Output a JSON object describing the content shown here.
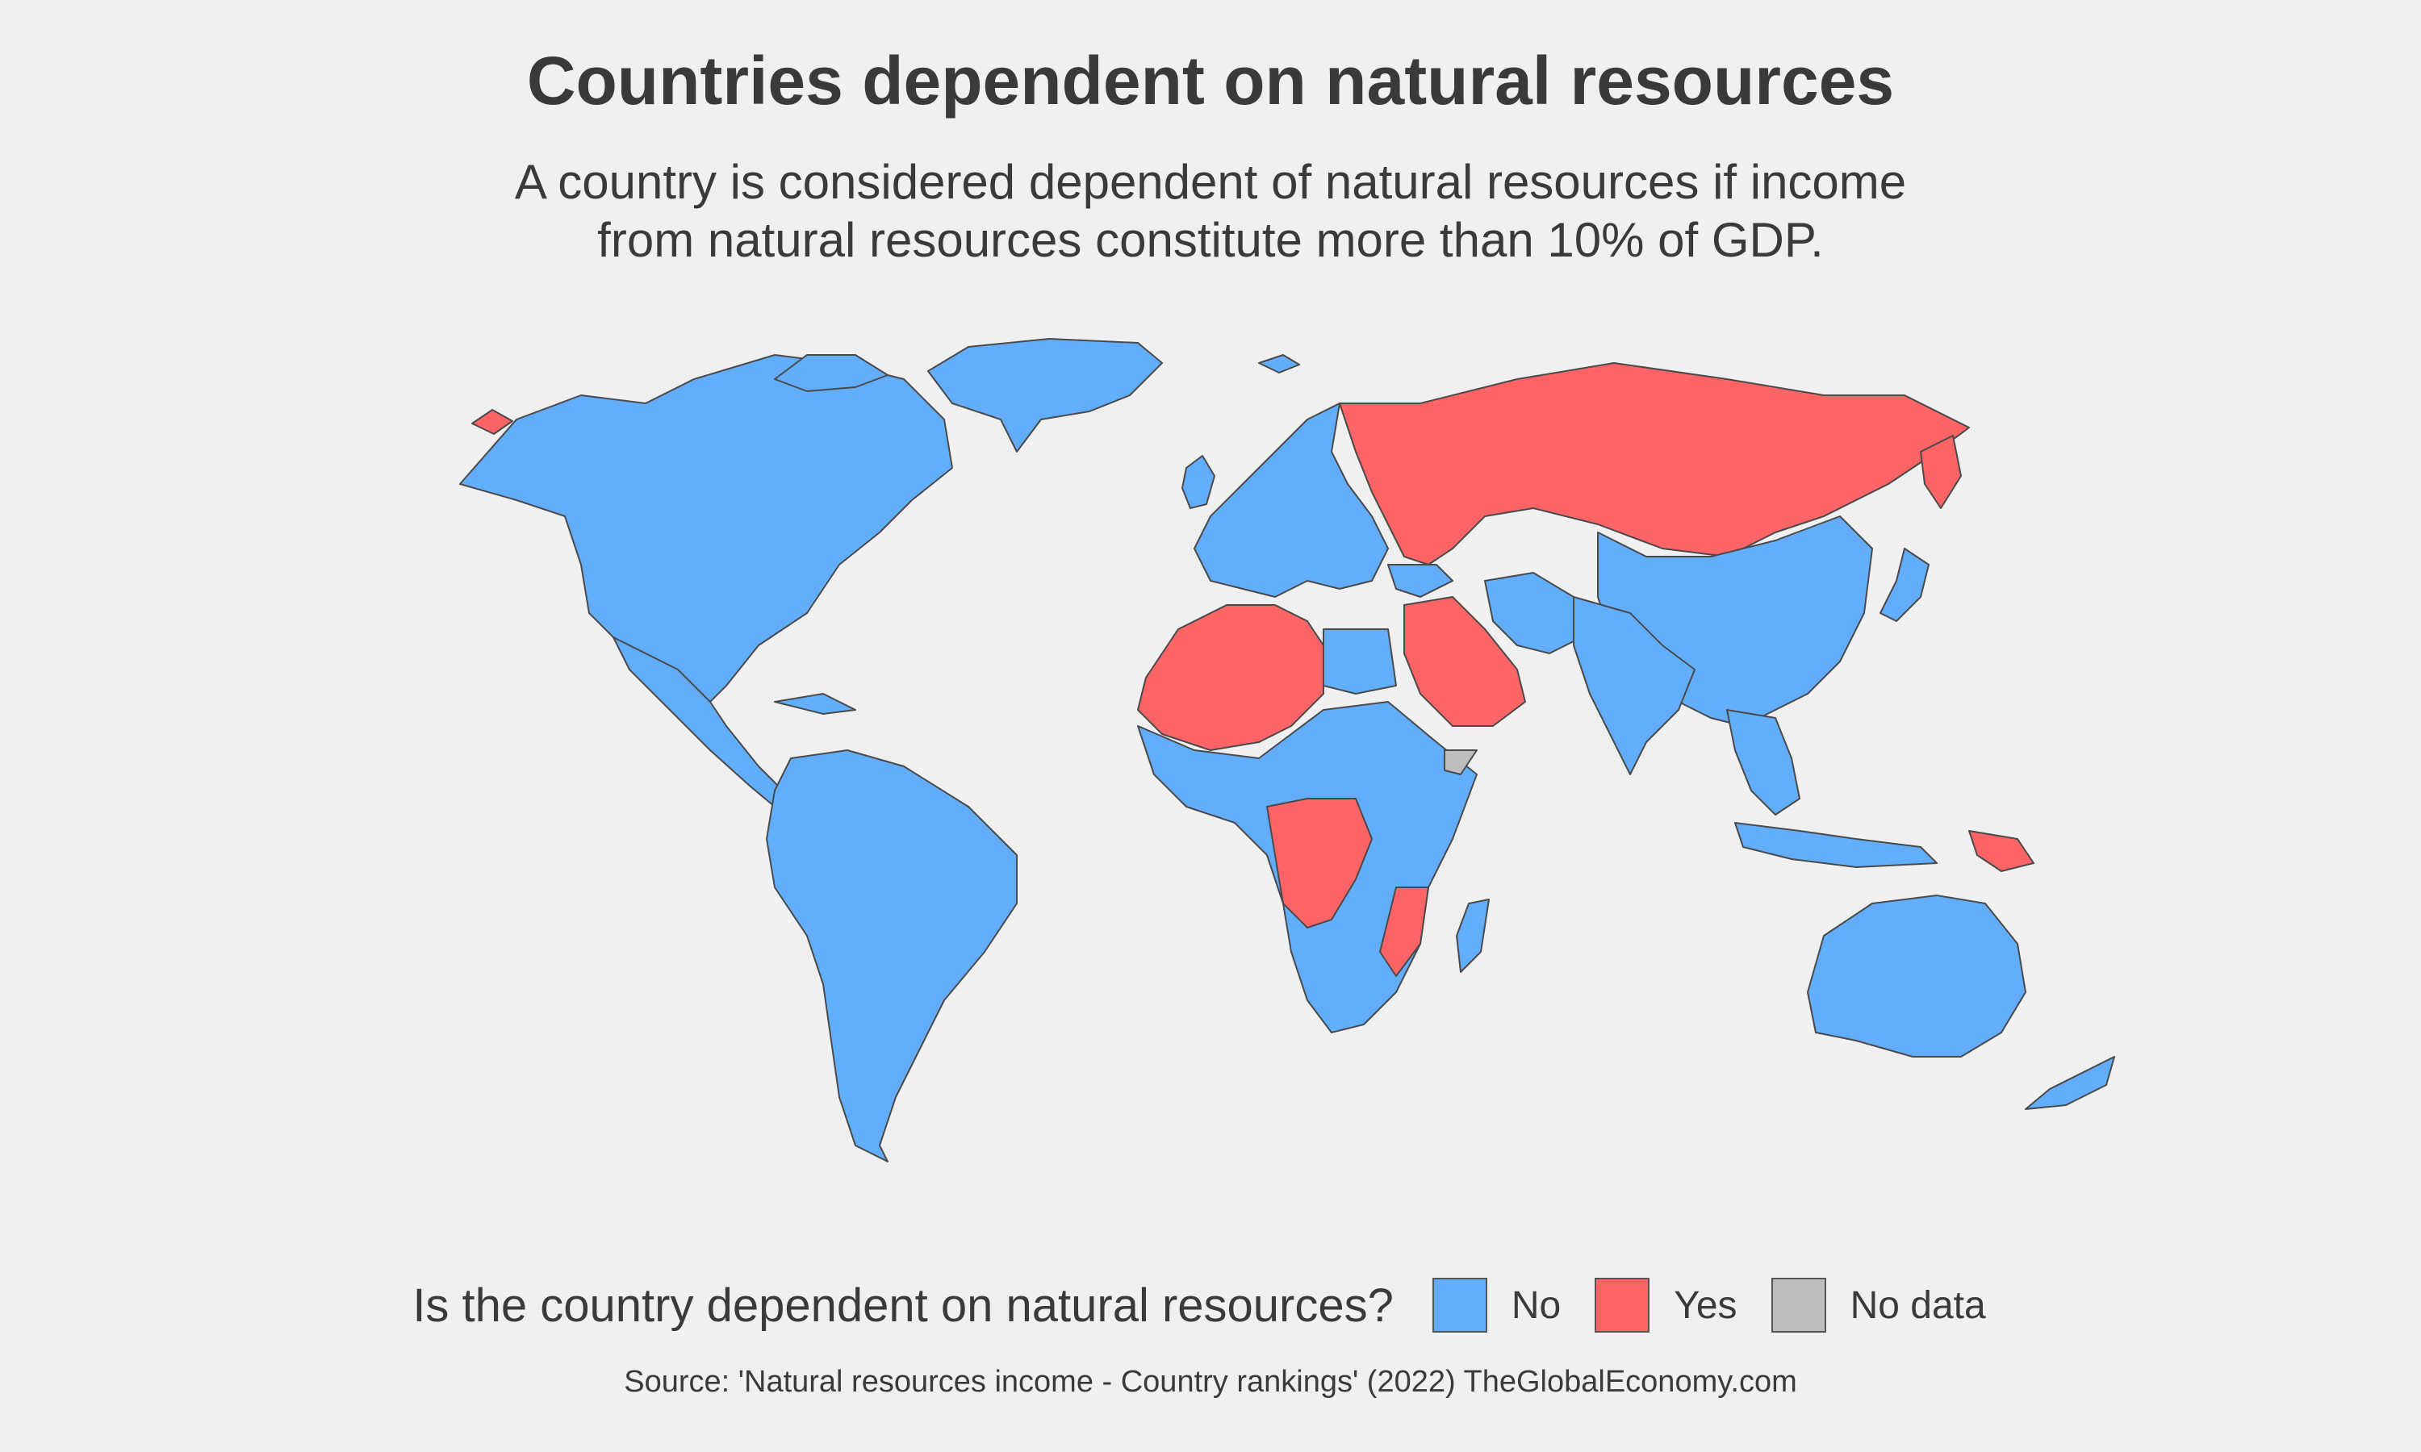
{
  "title": "Countries dependent on natural resources",
  "subtitle": [
    "A country is considered dependent of natural resources if income",
    "from natural resources constitute more than 10% of GDP."
  ],
  "legend": {
    "title": "Is the country dependent on natural resources?",
    "items": [
      {
        "label": "No",
        "color": "#63aefc"
      },
      {
        "label": "Yes",
        "color": "#fd6466"
      },
      {
        "label": "No data",
        "color": "#bebebe"
      }
    ]
  },
  "source": "Source: 'Natural resources income - Country rankings' (2022) TheGlobalEconomy.com"
}
